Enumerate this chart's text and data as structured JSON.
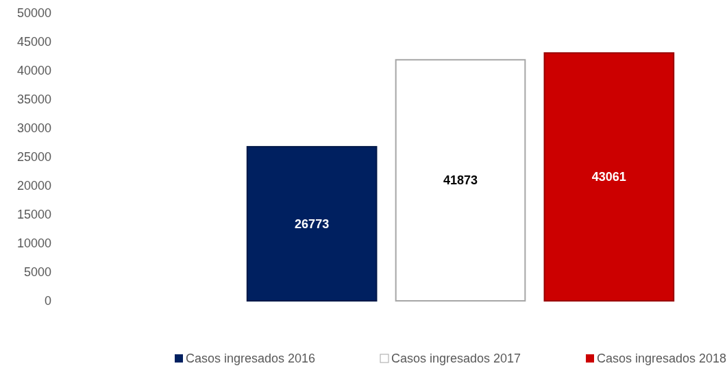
{
  "chart_data": {
    "type": "bar",
    "categories": [
      null
    ],
    "series": [
      {
        "name": "Casos ingresados 2016",
        "color": "#002060",
        "values": [
          26773
        ]
      },
      {
        "name": "Casos ingresados 2017",
        "color": "#ffffff",
        "values": [
          41873
        ]
      },
      {
        "name": "Casos ingresados 2018",
        "color": "#cc0000",
        "values": [
          43061
        ]
      }
    ],
    "ylim": [
      0,
      50000
    ],
    "yticks": [
      0,
      5000,
      10000,
      15000,
      20000,
      25000,
      30000,
      35000,
      40000,
      45000,
      50000
    ],
    "grid": false,
    "legend": "bottom",
    "data_labels": true
  }
}
